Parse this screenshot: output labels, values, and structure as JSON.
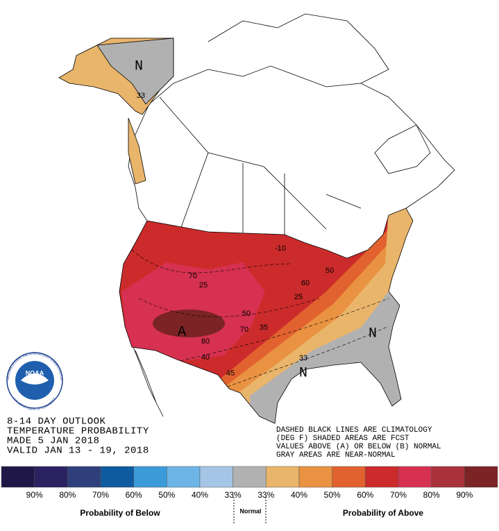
{
  "map": {
    "region_labels": [
      "N",
      "A",
      "N",
      "N"
    ],
    "contour_labels": [
      "33",
      "-10",
      "70",
      "25",
      "60",
      "50",
      "50",
      "25",
      "80",
      "40",
      "70",
      "35",
      "45",
      "33"
    ]
  },
  "logo": {
    "name": "NOAA",
    "ring_top": "NATIONAL OCEANIC AND ATMOSPHERIC ADMINISTRATION",
    "ring_bottom": "U.S. DEPARTMENT OF COMMERCE"
  },
  "outlook": {
    "lines": [
      "8-14 DAY OUTLOOK",
      "TEMPERATURE PROBABILITY",
      "MADE  5 JAN 2018",
      "VALID  JAN 13 - 19, 2018"
    ]
  },
  "notes": {
    "lines": [
      "DASHED BLACK LINES ARE CLIMATOLOGY",
      "(DEG F) SHADED AREAS ARE FCST",
      "VALUES ABOVE (A) OR BELOW (B) NORMAL",
      "GRAY AREAS ARE NEAR-NORMAL"
    ]
  },
  "legend": {
    "colors": [
      "#1f1747",
      "#2b2262",
      "#2f3f7c",
      "#0f5ba2",
      "#3b9bd9",
      "#6db5e7",
      "#a4c5e5",
      "#b1b1b1",
      "#e9b56b",
      "#e99242",
      "#e1622f",
      "#cc2b2b",
      "#d63150",
      "#a9313b",
      "#7b2325"
    ],
    "tick_labels": [
      "90%",
      "80%",
      "70%",
      "60%",
      "50%",
      "40%",
      "33%",
      "33%",
      "40%",
      "50%",
      "60%",
      "70%",
      "80%",
      "90%"
    ],
    "below_title": "Probability of Below",
    "normal_title": "Normal",
    "above_title": "Probability of Above"
  }
}
